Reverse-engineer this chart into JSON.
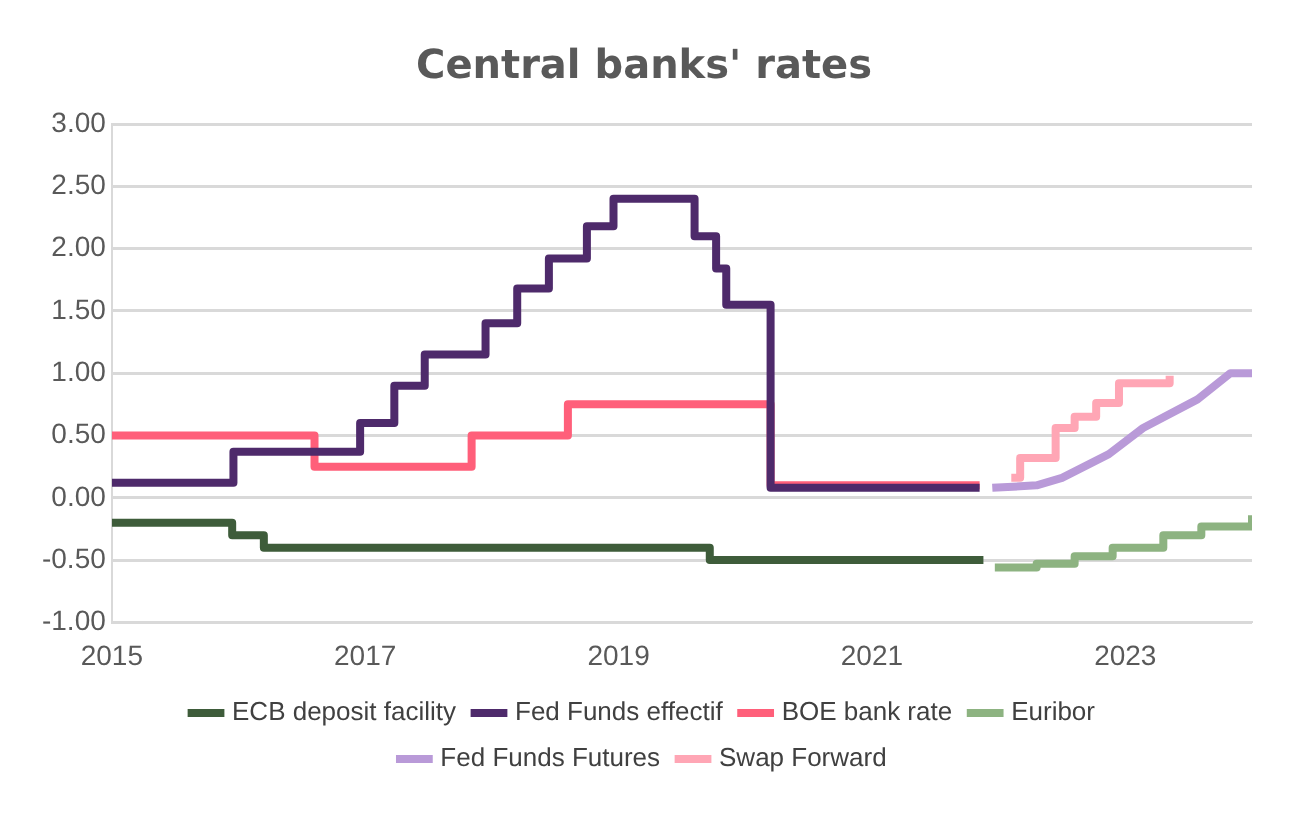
{
  "chart_data": {
    "type": "step",
    "title": "Central banks' rates",
    "xlim": [
      2015,
      2024
    ],
    "xticks": [
      2015,
      2017,
      2019,
      2021,
      2023
    ],
    "ylim": [
      -1,
      3
    ],
    "yticks": [
      {
        "value": -1,
        "label": "-1.00"
      },
      {
        "value": -0.5,
        "label": "-0.50"
      },
      {
        "value": 0,
        "label": "0.00"
      },
      {
        "value": 0.5,
        "label": "0.50"
      },
      {
        "value": 1,
        "label": "1.00"
      },
      {
        "value": 1.5,
        "label": "1.50"
      },
      {
        "value": 2,
        "label": "2.00"
      },
      {
        "value": 2.5,
        "label": "2.50"
      },
      {
        "value": 3,
        "label": "3.00"
      }
    ],
    "grid": "y",
    "legend": "bottom",
    "marker": "none",
    "series": [
      {
        "name": "ECB deposit facility",
        "color": "#3e5c3a",
        "x": [
          2015,
          2015.95,
          2016.2,
          2019.72,
          2021.88
        ],
        "values": [
          -0.2,
          -0.3,
          -0.4,
          -0.5,
          -0.5
        ]
      },
      {
        "name": "Fed Funds effectif",
        "color": "#4e2a6b",
        "x": [
          2015,
          2015.96,
          2016.96,
          2017.23,
          2017.47,
          2017.95,
          2018.2,
          2018.45,
          2018.75,
          2018.96,
          2019.6,
          2019.77,
          2019.85,
          2020.2,
          2021.85
        ],
        "values": [
          0.12,
          0.37,
          0.6,
          0.9,
          1.15,
          1.4,
          1.68,
          1.92,
          2.18,
          2.4,
          2.1,
          1.84,
          1.55,
          0.08,
          0.08
        ]
      },
      {
        "name": "BOE bank rate",
        "color": "#ff5f7a",
        "x": [
          2015,
          2016.6,
          2017.84,
          2018.6,
          2020.2,
          2021.85
        ],
        "values": [
          0.5,
          0.25,
          0.5,
          0.75,
          0.1,
          0.1
        ]
      },
      {
        "name": "Euribor",
        "color": "#8db381",
        "x": [
          2021.97,
          2022.3,
          2022.6,
          2022.9,
          2023.3,
          2023.6,
          2024
        ],
        "values": [
          -0.56,
          -0.53,
          -0.47,
          -0.4,
          -0.3,
          -0.23,
          -0.14
        ]
      },
      {
        "name": "Fed Funds Futures",
        "type": "line",
        "color": "#b99ad8",
        "x": [
          2021.95,
          2022.3,
          2022.5,
          2022.87,
          2023.14,
          2023.57,
          2023.83,
          2024
        ],
        "values": [
          0.08,
          0.1,
          0.16,
          0.35,
          0.56,
          0.79,
          1.0,
          1.0
        ]
      },
      {
        "name": "Swap Forward",
        "color": "#ffa6b5",
        "x": [
          2022.1,
          2022.17,
          2022.45,
          2022.6,
          2022.77,
          2022.95,
          2023.35
        ],
        "values": [
          0.16,
          0.32,
          0.56,
          0.65,
          0.76,
          0.92,
          0.98
        ]
      }
    ]
  }
}
